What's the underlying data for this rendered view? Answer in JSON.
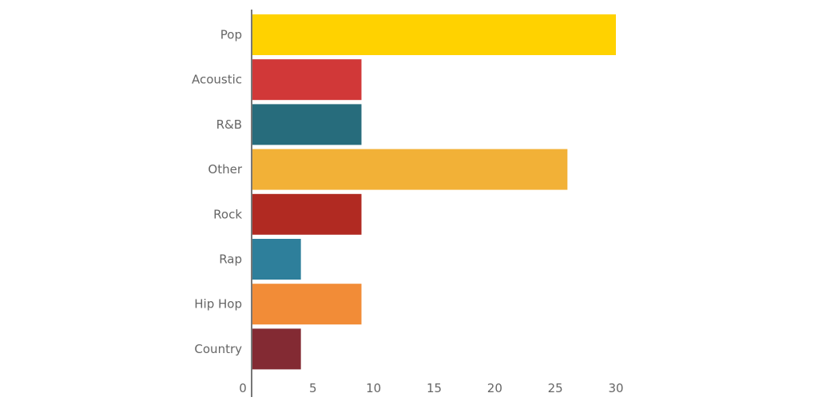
{
  "chart_data": {
    "type": "bar",
    "orientation": "horizontal",
    "categories": [
      "Pop",
      "Acoustic",
      "R&B",
      "Other",
      "Rock",
      "Rap",
      "Hip Hop",
      "Country"
    ],
    "values": [
      30,
      9,
      9,
      26,
      9,
      4,
      9,
      4
    ],
    "colors": [
      "#FFD200",
      "#D13838",
      "#276C7C",
      "#F2B137",
      "#B12A22",
      "#2E7F9B",
      "#F28C37",
      "#832A33"
    ],
    "xlim": [
      0,
      30
    ],
    "xticks": [
      0,
      5,
      10,
      15,
      20,
      25,
      30
    ],
    "grid": false,
    "title": "",
    "xlabel": "",
    "ylabel": ""
  }
}
